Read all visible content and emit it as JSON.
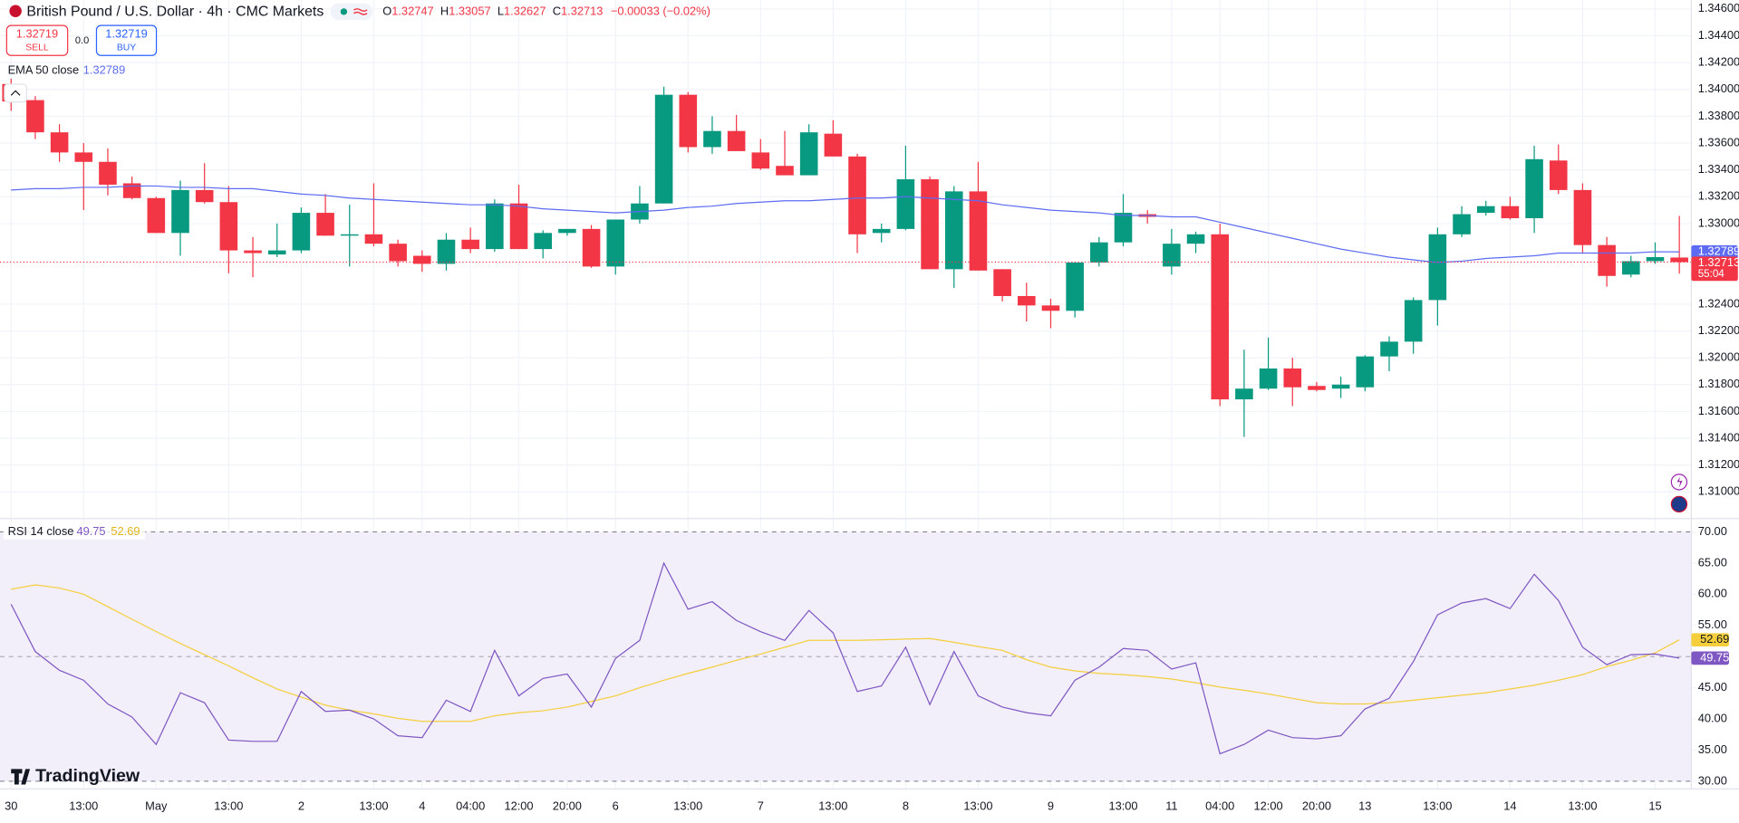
{
  "header": {
    "symbol": "British Pound / U.S. Dollar · 4h · CMC Markets",
    "ohlc_labels": [
      "O",
      "H",
      "L",
      "C"
    ],
    "change": "−0.00033 (−0.02%)",
    "sell": {
      "price": "1.32719",
      "label": "SELL"
    },
    "spread": "0.0",
    "buy": {
      "price": "1.32719",
      "label": "BUY"
    },
    "countdown": "55:04",
    "watermark": "TradingView"
  },
  "chart_data": [
    {
      "type": "candlestick",
      "up_color": "#089981",
      "down_color": "#f23645",
      "grid": true,
      "categories": [
        "30",
        null,
        null,
        "13:00",
        null,
        null,
        "May",
        null,
        null,
        "13:00",
        null,
        null,
        "2",
        null,
        null,
        "13:00",
        null,
        "4",
        null,
        "04:00",
        null,
        "12:00",
        null,
        "20:00",
        null,
        "6",
        null,
        null,
        "13:00",
        null,
        null,
        "7",
        null,
        null,
        "13:00",
        null,
        null,
        "8",
        null,
        null,
        "13:00",
        null,
        null,
        "9",
        null,
        null,
        "13:00",
        null,
        "11",
        null,
        "04:00",
        null,
        "12:00",
        null,
        "20:00",
        null,
        "13",
        null,
        null,
        "13:00",
        null,
        null,
        "14",
        null,
        null,
        "13:00",
        null,
        null,
        "15",
        null
      ],
      "open": [
        1.3404,
        1.3392,
        1.3368,
        1.3353,
        1.3346,
        1.333,
        1.3319,
        1.3293,
        1.3325,
        1.3316,
        1.328,
        1.3277,
        1.328,
        1.3308,
        1.3291,
        1.3292,
        1.3285,
        1.3276,
        1.327,
        1.3288,
        1.3281,
        1.3315,
        1.3281,
        1.3293,
        1.3296,
        1.3268,
        1.3303,
        1.3315,
        1.3396,
        1.3357,
        1.3369,
        1.3353,
        1.3343,
        1.3336,
        1.3367,
        1.335,
        1.3293,
        1.3296,
        1.3333,
        1.3266,
        1.3324,
        1.3266,
        1.3246,
        1.3239,
        1.3235,
        1.3271,
        1.3286,
        1.3307,
        1.3268,
        1.3285,
        1.3292,
        1.3169,
        1.3177,
        1.3192,
        1.3179,
        1.3177,
        1.3178,
        1.3201,
        1.3212,
        1.3243,
        1.3292,
        1.3308,
        1.3313,
        1.3304,
        1.3347,
        1.3325,
        1.3284,
        1.3262,
        1.3272,
        1.32747
      ],
      "high": [
        1.3408,
        1.3395,
        1.3374,
        1.336,
        1.3356,
        1.3335,
        1.332,
        1.3332,
        1.3345,
        1.3328,
        1.329,
        1.33,
        1.3312,
        1.3322,
        1.3314,
        1.333,
        1.3288,
        1.328,
        1.3293,
        1.3297,
        1.3318,
        1.3329,
        1.3295,
        1.3296,
        1.3299,
        1.33,
        1.3328,
        1.3402,
        1.3398,
        1.338,
        1.3381,
        1.3363,
        1.3369,
        1.3374,
        1.3377,
        1.3352,
        1.33,
        1.3358,
        1.3335,
        1.3328,
        1.3346,
        1.3266,
        1.3256,
        1.3244,
        1.3271,
        1.329,
        1.3322,
        1.331,
        1.3296,
        1.3294,
        1.33,
        1.3206,
        1.3215,
        1.32,
        1.3182,
        1.3186,
        1.3202,
        1.3216,
        1.3245,
        1.3297,
        1.3313,
        1.3317,
        1.332,
        1.3358,
        1.3359,
        1.333,
        1.329,
        1.3276,
        1.3286,
        1.33057
      ],
      "low": [
        1.3384,
        1.3363,
        1.3346,
        1.331,
        1.3321,
        1.3318,
        1.3293,
        1.3276,
        1.3315,
        1.3263,
        1.326,
        1.3275,
        1.3278,
        1.3291,
        1.3268,
        1.3283,
        1.3268,
        1.3264,
        1.3265,
        1.3278,
        1.3279,
        1.3281,
        1.3274,
        1.3291,
        1.3267,
        1.3262,
        1.33,
        1.3315,
        1.3353,
        1.3352,
        1.3354,
        1.334,
        1.3336,
        1.3336,
        1.335,
        1.3278,
        1.3286,
        1.3295,
        1.3266,
        1.3252,
        1.3265,
        1.3242,
        1.3227,
        1.3222,
        1.323,
        1.3268,
        1.3283,
        1.33,
        1.3262,
        1.3278,
        1.3164,
        1.3141,
        1.3176,
        1.3164,
        1.3175,
        1.317,
        1.3175,
        1.319,
        1.3203,
        1.3224,
        1.329,
        1.3306,
        1.3303,
        1.3293,
        1.3322,
        1.3278,
        1.3253,
        1.326,
        1.327,
        1.32627
      ],
      "close": [
        1.3391,
        1.3368,
        1.3353,
        1.3346,
        1.3329,
        1.3319,
        1.3293,
        1.3325,
        1.3316,
        1.328,
        1.3278,
        1.328,
        1.3308,
        1.3291,
        1.3292,
        1.3285,
        1.3272,
        1.327,
        1.3288,
        1.3281,
        1.3315,
        1.3281,
        1.3293,
        1.3296,
        1.3268,
        1.3303,
        1.3315,
        1.3396,
        1.3357,
        1.3369,
        1.3354,
        1.3341,
        1.3336,
        1.3368,
        1.335,
        1.3292,
        1.3296,
        1.3333,
        1.3266,
        1.3324,
        1.3265,
        1.3246,
        1.3239,
        1.3235,
        1.3271,
        1.3286,
        1.3308,
        1.3305,
        1.3285,
        1.3292,
        1.3169,
        1.3177,
        1.3192,
        1.3178,
        1.3176,
        1.318,
        1.3201,
        1.3212,
        1.3243,
        1.3292,
        1.3307,
        1.3313,
        1.3304,
        1.3348,
        1.3325,
        1.3284,
        1.3261,
        1.3272,
        1.3275,
        1.32713
      ],
      "ema": {
        "name": "EMA 50 close",
        "color": "#5c6bf2",
        "values": [
          1.3325,
          1.3326,
          1.3326,
          1.3327,
          1.3327,
          1.3328,
          1.3328,
          1.3327,
          1.3327,
          1.3326,
          1.3326,
          1.3324,
          1.3322,
          1.3321,
          1.3319,
          1.3318,
          1.3317,
          1.3316,
          1.3315,
          1.3314,
          1.3314,
          1.3313,
          1.3311,
          1.331,
          1.3309,
          1.3308,
          1.3309,
          1.331,
          1.3312,
          1.3313,
          1.3315,
          1.3316,
          1.3317,
          1.3317,
          1.3318,
          1.3319,
          1.3319,
          1.332,
          1.3319,
          1.3318,
          1.3317,
          1.3314,
          1.3312,
          1.331,
          1.3309,
          1.3308,
          1.3306,
          1.3306,
          1.3305,
          1.3305,
          1.3301,
          1.3297,
          1.3293,
          1.3289,
          1.3285,
          1.3281,
          1.3278,
          1.3275,
          1.3273,
          1.3271,
          1.3272,
          1.3274,
          1.3275,
          1.3276,
          1.3278,
          1.3278,
          1.3278,
          1.3278,
          1.3279,
          1.32789
        ]
      },
      "ylim": [
        1.30818,
        1.34666
      ],
      "yticks": [
        {
          "value": 1.346,
          "label": "1.34600"
        },
        {
          "value": 1.344,
          "label": "1.34400"
        },
        {
          "value": 1.342,
          "label": "1.34200"
        },
        {
          "value": 1.34,
          "label": "1.34000"
        },
        {
          "value": 1.338,
          "label": "1.33800"
        },
        {
          "value": 1.336,
          "label": "1.33600"
        },
        {
          "value": 1.334,
          "label": "1.33400"
        },
        {
          "value": 1.332,
          "label": "1.33200"
        },
        {
          "value": 1.33,
          "label": "1.33000"
        },
        {
          "value": 1.324,
          "label": "1.32400"
        },
        {
          "value": 1.322,
          "label": "1.32200"
        },
        {
          "value": 1.32,
          "label": "1.32000"
        },
        {
          "value": 1.318,
          "label": "1.31800"
        },
        {
          "value": 1.316,
          "label": "1.31600"
        },
        {
          "value": 1.314,
          "label": "1.31400"
        },
        {
          "value": 1.312,
          "label": "1.31200"
        },
        {
          "value": 1.31,
          "label": "1.31000"
        }
      ]
    },
    {
      "type": "line",
      "title": "RSI 14 close",
      "grid": true,
      "band": [
        30,
        70
      ],
      "band_color": "#f2eefa",
      "midline": 50,
      "series": [
        {
          "color": "#7e57c2",
          "values": [
            58.4,
            50.8,
            47.8,
            46.2,
            42.4,
            40.3,
            35.9,
            44.2,
            42.6,
            36.6,
            36.4,
            36.4,
            44.4,
            41.2,
            41.4,
            40.0,
            37.3,
            37.0,
            43.0,
            41.2,
            51.0,
            43.7,
            46.5,
            47.2,
            41.9,
            49.7,
            52.6,
            65.0,
            57.6,
            58.8,
            55.8,
            54.0,
            52.6,
            57.4,
            53.8,
            44.4,
            45.3,
            51.5,
            42.3,
            50.8,
            43.7,
            41.9,
            41.0,
            40.5,
            46.2,
            48.3,
            51.3,
            51.0,
            48.0,
            49.0,
            34.4,
            35.9,
            38.2,
            37.0,
            36.8,
            37.3,
            41.6,
            43.3,
            49.2,
            56.7,
            58.6,
            59.3,
            57.7,
            63.2,
            59.0,
            51.5,
            48.7,
            50.3,
            50.4,
            49.75
          ]
        },
        {
          "color": "#f5cf3b",
          "values": [
            60.8,
            61.5,
            61.0,
            60.0,
            58.0,
            56.0,
            54.0,
            52.1,
            50.3,
            48.5,
            46.6,
            44.8,
            43.5,
            42.2,
            41.4,
            40.8,
            40.1,
            39.6,
            39.6,
            39.6,
            40.5,
            41.0,
            41.3,
            41.9,
            42.8,
            43.7,
            45.0,
            46.2,
            47.3,
            48.3,
            49.4,
            50.4,
            51.5,
            52.6,
            52.6,
            52.6,
            52.7,
            52.8,
            52.9,
            52.3,
            51.6,
            51.0,
            49.5,
            48.3,
            47.7,
            47.3,
            47.1,
            46.8,
            46.4,
            45.8,
            45.1,
            44.6,
            44.0,
            43.3,
            42.6,
            42.4,
            42.4,
            42.6,
            43.0,
            43.4,
            43.8,
            44.2,
            44.8,
            45.4,
            46.2,
            47.1,
            48.4,
            49.4,
            50.6,
            52.69
          ]
        }
      ],
      "ylim": [
        28.76,
        71.78
      ],
      "yticks": [
        {
          "value": 70,
          "label": "70.00"
        },
        {
          "value": 65,
          "label": "65.00"
        },
        {
          "value": 60,
          "label": "60.00"
        },
        {
          "value": 55,
          "label": "55.00"
        },
        {
          "value": 45,
          "label": "45.00"
        },
        {
          "value": 40,
          "label": "40.00"
        },
        {
          "value": 35,
          "label": "35.00"
        },
        {
          "value": 30,
          "label": "30.00"
        }
      ]
    }
  ]
}
